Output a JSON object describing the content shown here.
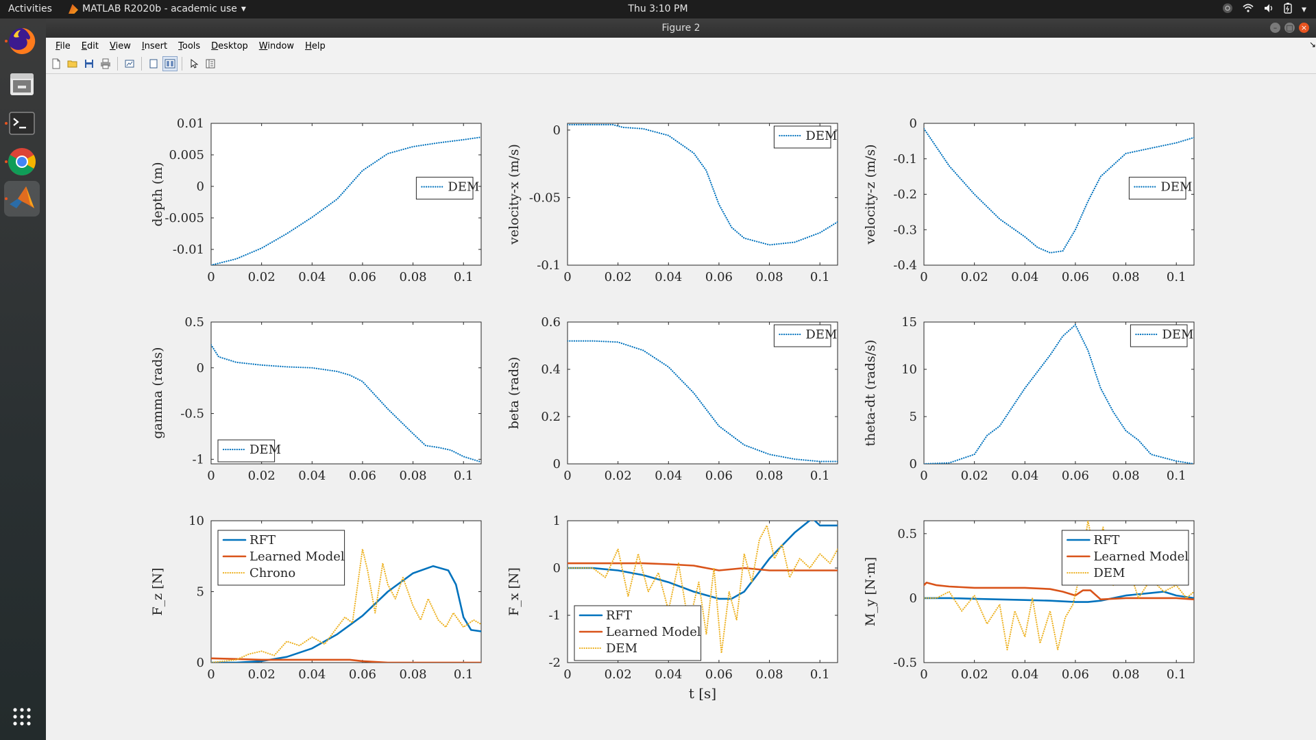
{
  "topbar": {
    "activities": "Activities",
    "app_name": "MATLAB R2020b - academic use",
    "clock": "Thu  3:10 PM",
    "tray_icons": [
      "ubuntu-icon",
      "wifi-icon",
      "volume-icon",
      "battery-icon",
      "power-icon"
    ]
  },
  "dock": {
    "items": [
      {
        "name": "firefox-icon",
        "active": false
      },
      {
        "name": "files-icon",
        "active": false
      },
      {
        "name": "terminal-icon",
        "active": false
      },
      {
        "name": "chrome-icon",
        "active": false
      },
      {
        "name": "matlab-icon",
        "active": true
      }
    ],
    "apps_grid_icon": "apps-grid-icon"
  },
  "window": {
    "title": "Figure 2",
    "menu": [
      "File",
      "Edit",
      "View",
      "Insert",
      "Tools",
      "Desktop",
      "Window",
      "Help"
    ],
    "toolbar": [
      "new-figure-icon",
      "open-file-icon",
      "save-icon",
      "print-icon",
      "link-plot-icon",
      "hide-plot-tools-icon",
      "show-plot-tools-icon",
      "edit-plot-icon",
      "property-inspector-icon"
    ]
  },
  "colors": {
    "blue": "#0072bd",
    "orange": "#d95319",
    "yellow": "#edb120"
  },
  "chart_data": [
    {
      "type": "line",
      "ylabel": "depth (m)",
      "xlabel": "",
      "xlim": [
        0,
        0.107
      ],
      "ylim": [
        -0.0125,
        0.01
      ],
      "xticks": [
        "0",
        "0.02",
        "0.04",
        "0.06",
        "0.08",
        "0.1"
      ],
      "yticks": [
        "0.01",
        "0.005",
        "0",
        "-0.005",
        "-0.01"
      ],
      "ytick_values": [
        0.01,
        0.005,
        0,
        -0.005,
        -0.01
      ],
      "legend": {
        "position": "right",
        "entries": [
          "DEM"
        ]
      },
      "series": [
        {
          "name": "DEM",
          "color": "blue",
          "style": "dotted",
          "x": [
            0,
            0.01,
            0.02,
            0.03,
            0.04,
            0.05,
            0.06,
            0.07,
            0.08,
            0.09,
            0.1,
            0.107
          ],
          "y": [
            -0.0125,
            -0.0115,
            -0.0098,
            -0.0075,
            -0.0049,
            -0.002,
            0.0025,
            0.0052,
            0.0063,
            0.0069,
            0.0074,
            0.0078
          ]
        }
      ]
    },
    {
      "type": "line",
      "ylabel": "velocity-x (m/s)",
      "xlabel": "",
      "xlim": [
        0,
        0.107
      ],
      "ylim": [
        -0.1,
        0.005
      ],
      "xticks": [
        "0",
        "0.02",
        "0.04",
        "0.06",
        "0.08",
        "0.1"
      ],
      "yticks": [
        "0",
        "-0.05",
        "-0.1"
      ],
      "ytick_values": [
        0,
        -0.05,
        -0.1
      ],
      "legend": {
        "position": "top-right",
        "entries": [
          "DEM"
        ]
      },
      "series": [
        {
          "name": "DEM",
          "color": "blue",
          "style": "dotted",
          "x": [
            0,
            0.01,
            0.018,
            0.022,
            0.03,
            0.04,
            0.05,
            0.055,
            0.06,
            0.065,
            0.07,
            0.08,
            0.09,
            0.1,
            0.107
          ],
          "y": [
            0.004,
            0.004,
            0.004,
            0.002,
            0.001,
            -0.004,
            -0.017,
            -0.03,
            -0.055,
            -0.072,
            -0.08,
            -0.085,
            -0.083,
            -0.076,
            -0.068
          ]
        }
      ]
    },
    {
      "type": "line",
      "ylabel": "velocity-z (m/s)",
      "xlabel": "",
      "xlim": [
        0,
        0.107
      ],
      "ylim": [
        -0.4,
        0
      ],
      "xticks": [
        "0",
        "0.02",
        "0.04",
        "0.06",
        "0.08",
        "0.1"
      ],
      "yticks": [
        "0",
        "-0.1",
        "-0.2",
        "-0.3",
        "-0.4"
      ],
      "ytick_values": [
        0,
        -0.1,
        -0.2,
        -0.3,
        -0.4
      ],
      "legend": {
        "position": "right",
        "entries": [
          "DEM"
        ]
      },
      "series": [
        {
          "name": "DEM",
          "color": "blue",
          "style": "dotted",
          "x": [
            0,
            0.01,
            0.02,
            0.03,
            0.04,
            0.045,
            0.05,
            0.055,
            0.06,
            0.065,
            0.07,
            0.08,
            0.09,
            0.1,
            0.107
          ],
          "y": [
            -0.015,
            -0.12,
            -0.2,
            -0.27,
            -0.32,
            -0.35,
            -0.365,
            -0.36,
            -0.3,
            -0.22,
            -0.15,
            -0.085,
            -0.07,
            -0.055,
            -0.04
          ]
        }
      ]
    },
    {
      "type": "line",
      "ylabel": "gamma (rads)",
      "xlabel": "",
      "xlim": [
        0,
        0.107
      ],
      "ylim": [
        -1.05,
        0.5
      ],
      "xticks": [
        "0",
        "0.02",
        "0.04",
        "0.06",
        "0.08",
        "0.1"
      ],
      "yticks": [
        "0.5",
        "0",
        "-0.5",
        "-1"
      ],
      "ytick_values": [
        0.5,
        0,
        -0.5,
        -1
      ],
      "legend": {
        "position": "bottom-left",
        "entries": [
          "DEM"
        ]
      },
      "series": [
        {
          "name": "DEM",
          "color": "blue",
          "style": "dotted",
          "x": [
            0,
            0.003,
            0.01,
            0.02,
            0.03,
            0.04,
            0.05,
            0.055,
            0.06,
            0.07,
            0.08,
            0.085,
            0.09,
            0.095,
            0.1,
            0.107
          ],
          "y": [
            0.25,
            0.12,
            0.06,
            0.03,
            0.01,
            0,
            -0.04,
            -0.08,
            -0.15,
            -0.45,
            -0.72,
            -0.85,
            -0.87,
            -0.9,
            -0.97,
            -1.03
          ]
        }
      ]
    },
    {
      "type": "line",
      "ylabel": "beta (rads)",
      "xlabel": "",
      "xlim": [
        0,
        0.107
      ],
      "ylim": [
        0,
        0.6
      ],
      "xticks": [
        "0",
        "0.02",
        "0.04",
        "0.06",
        "0.08",
        "0.1"
      ],
      "yticks": [
        "0.6",
        "0.4",
        "0.2",
        "0"
      ],
      "ytick_values": [
        0.6,
        0.4,
        0.2,
        0
      ],
      "legend": {
        "position": "top-right",
        "entries": [
          "DEM"
        ]
      },
      "series": [
        {
          "name": "DEM",
          "color": "blue",
          "style": "dotted",
          "x": [
            0,
            0.01,
            0.02,
            0.03,
            0.04,
            0.05,
            0.06,
            0.07,
            0.08,
            0.09,
            0.1,
            0.107
          ],
          "y": [
            0.52,
            0.52,
            0.515,
            0.48,
            0.41,
            0.3,
            0.16,
            0.08,
            0.04,
            0.02,
            0.01,
            0.01
          ]
        }
      ]
    },
    {
      "type": "line",
      "ylabel": "theta-dt (rads/s)",
      "xlabel": "",
      "xlim": [
        0,
        0.107
      ],
      "ylim": [
        0,
        15
      ],
      "xticks": [
        "0",
        "0.02",
        "0.04",
        "0.06",
        "0.08",
        "0.1"
      ],
      "yticks": [
        "15",
        "10",
        "5",
        "0"
      ],
      "ytick_values": [
        15,
        10,
        5,
        0
      ],
      "legend": {
        "position": "top-right",
        "entries": [
          "DEM"
        ]
      },
      "series": [
        {
          "name": "DEM",
          "color": "blue",
          "style": "dotted",
          "x": [
            0,
            0.01,
            0.02,
            0.025,
            0.03,
            0.04,
            0.05,
            0.055,
            0.06,
            0.065,
            0.07,
            0.075,
            0.08,
            0.085,
            0.09,
            0.1,
            0.107
          ],
          "y": [
            0,
            0.1,
            1,
            3,
            4,
            8,
            11.5,
            13.5,
            14.7,
            12,
            8,
            5.5,
            3.5,
            2.5,
            1,
            0.3,
            0
          ]
        }
      ]
    },
    {
      "type": "line",
      "ylabel": "F_z [N]",
      "xlabel": "",
      "xlim": [
        0,
        0.107
      ],
      "ylim": [
        0,
        10
      ],
      "xticks": [
        "0",
        "0.02",
        "0.04",
        "0.06",
        "0.08",
        "0.1"
      ],
      "yticks": [
        "10",
        "5",
        "0"
      ],
      "ytick_values": [
        10,
        5,
        0
      ],
      "legend": {
        "position": "top-left",
        "entries": [
          "RFT",
          "Learned Model",
          "Chrono"
        ]
      },
      "series": [
        {
          "name": "RFT",
          "color": "blue",
          "style": "solid",
          "x": [
            0,
            0.01,
            0.02,
            0.03,
            0.04,
            0.05,
            0.06,
            0.07,
            0.08,
            0.088,
            0.094,
            0.097,
            0.1,
            0.103,
            0.107
          ],
          "y": [
            0,
            0,
            0.1,
            0.4,
            1,
            2,
            3.3,
            5,
            6.3,
            6.8,
            6.5,
            5.5,
            3.2,
            2.3,
            2.2
          ]
        },
        {
          "name": "Learned Model",
          "color": "orange",
          "style": "solid",
          "x": [
            0,
            0.01,
            0.02,
            0.03,
            0.04,
            0.05,
            0.055,
            0.06,
            0.07,
            0.08,
            0.09,
            0.1,
            0.107
          ],
          "y": [
            0.3,
            0.25,
            0.2,
            0.2,
            0.2,
            0.2,
            0.2,
            0.1,
            0,
            0,
            0,
            0,
            0
          ]
        },
        {
          "name": "Chrono",
          "color": "yellow",
          "style": "dotted",
          "x": [
            0,
            0.01,
            0.015,
            0.02,
            0.025,
            0.03,
            0.035,
            0.04,
            0.045,
            0.05,
            0.053,
            0.056,
            0.06,
            0.062,
            0.065,
            0.068,
            0.07,
            0.073,
            0.076,
            0.08,
            0.083,
            0.086,
            0.09,
            0.093,
            0.096,
            0.1,
            0.104,
            0.107
          ],
          "y": [
            0,
            0.2,
            0.6,
            0.8,
            0.5,
            1.5,
            1.2,
            1.8,
            1.3,
            2.5,
            3.2,
            2.8,
            8,
            6.5,
            3.5,
            7,
            5.5,
            4.5,
            6,
            4,
            3,
            4.5,
            3,
            2.5,
            3.5,
            2.5,
            3,
            2.7
          ]
        }
      ]
    },
    {
      "type": "line",
      "ylabel": "F_x [N]",
      "xlabel": "t [s]",
      "xlim": [
        0,
        0.107
      ],
      "ylim": [
        -2,
        1
      ],
      "xticks": [
        "0",
        "0.02",
        "0.04",
        "0.06",
        "0.08",
        "0.1"
      ],
      "yticks": [
        "1",
        "0",
        "-1",
        "-2"
      ],
      "ytick_values": [
        1,
        0,
        -1,
        -2
      ],
      "legend": {
        "position": "bottom-left",
        "entries": [
          "RFT",
          "Learned Model",
          "DEM"
        ]
      },
      "series": [
        {
          "name": "RFT",
          "color": "blue",
          "style": "solid",
          "x": [
            0,
            0.01,
            0.02,
            0.03,
            0.04,
            0.05,
            0.06,
            0.065,
            0.07,
            0.075,
            0.08,
            0.09,
            0.097,
            0.1,
            0.107
          ],
          "y": [
            0,
            0,
            -0.05,
            -0.15,
            -0.3,
            -0.5,
            -0.65,
            -0.65,
            -0.5,
            -0.15,
            0.2,
            0.75,
            1.05,
            0.9,
            0.9
          ]
        },
        {
          "name": "Learned Model",
          "color": "orange",
          "style": "solid",
          "x": [
            0,
            0.01,
            0.02,
            0.03,
            0.04,
            0.05,
            0.055,
            0.06,
            0.07,
            0.08,
            0.09,
            0.1,
            0.107
          ],
          "y": [
            0.1,
            0.1,
            0.1,
            0.1,
            0.08,
            0.05,
            0,
            -0.05,
            0,
            -0.05,
            -0.05,
            -0.05,
            -0.05
          ]
        },
        {
          "name": "DEM",
          "color": "yellow",
          "style": "dotted",
          "x": [
            0,
            0.01,
            0.015,
            0.02,
            0.024,
            0.028,
            0.032,
            0.036,
            0.04,
            0.044,
            0.048,
            0.052,
            0.055,
            0.058,
            0.061,
            0.064,
            0.067,
            0.07,
            0.073,
            0.076,
            0.079,
            0.082,
            0.085,
            0.088,
            0.092,
            0.096,
            0.1,
            0.104,
            0.107
          ],
          "y": [
            0,
            0,
            -0.2,
            0.4,
            -0.6,
            0.3,
            -0.5,
            -0.1,
            -0.9,
            0.1,
            -1.2,
            -0.3,
            -1.4,
            0,
            -1.8,
            -0.5,
            -1.1,
            0.3,
            -0.3,
            0.6,
            0.9,
            0.2,
            0.5,
            -0.2,
            0.2,
            0,
            0.3,
            0.1,
            0.4
          ]
        }
      ]
    },
    {
      "type": "line",
      "ylabel": "M_y [N·m]",
      "xlabel": "",
      "xlim": [
        0,
        0.107
      ],
      "ylim": [
        -0.5,
        0.6
      ],
      "xticks": [
        "0",
        "0.02",
        "0.04",
        "0.06",
        "0.08",
        "0.1"
      ],
      "yticks": [
        "0.5",
        "0",
        "-0.5"
      ],
      "ytick_values": [
        0.5,
        0,
        -0.5
      ],
      "legend": {
        "position": "top-right",
        "entries": [
          "RFT",
          "Learned Model",
          "DEM"
        ]
      },
      "series": [
        {
          "name": "RFT",
          "color": "blue",
          "style": "solid",
          "x": [
            0,
            0.01,
            0.02,
            0.03,
            0.04,
            0.05,
            0.06,
            0.065,
            0.07,
            0.08,
            0.09,
            0.095,
            0.1,
            0.107
          ],
          "y": [
            0,
            0,
            -0.005,
            -0.01,
            -0.015,
            -0.02,
            -0.03,
            -0.03,
            -0.02,
            0.02,
            0.04,
            0.05,
            0.02,
            0
          ]
        },
        {
          "name": "Learned Model",
          "color": "orange",
          "style": "solid",
          "x": [
            0,
            0.001,
            0.005,
            0.01,
            0.02,
            0.03,
            0.04,
            0.05,
            0.055,
            0.06,
            0.063,
            0.066,
            0.07,
            0.08,
            0.09,
            0.1,
            0.107
          ],
          "y": [
            0.1,
            0.12,
            0.1,
            0.09,
            0.08,
            0.08,
            0.08,
            0.07,
            0.05,
            0.02,
            0.06,
            0.06,
            -0.01,
            0,
            0,
            0,
            -0.01
          ]
        },
        {
          "name": "DEM",
          "color": "yellow",
          "style": "dotted",
          "x": [
            0,
            0.005,
            0.01,
            0.015,
            0.02,
            0.025,
            0.03,
            0.033,
            0.036,
            0.04,
            0.043,
            0.046,
            0.05,
            0.053,
            0.056,
            0.059,
            0.062,
            0.065,
            0.068,
            0.071,
            0.075,
            0.08,
            0.085,
            0.09,
            0.095,
            0.1,
            0.104,
            0.107
          ],
          "y": [
            0,
            0,
            0.05,
            -0.1,
            0.02,
            -0.2,
            -0.05,
            -0.4,
            -0.1,
            -0.3,
            0,
            -0.35,
            -0.1,
            -0.4,
            -0.15,
            -0.05,
            0.2,
            0.6,
            0.3,
            0.55,
            0.1,
            0.3,
            0,
            0.15,
            0.05,
            0.1,
            0,
            0.05
          ]
        }
      ]
    }
  ]
}
